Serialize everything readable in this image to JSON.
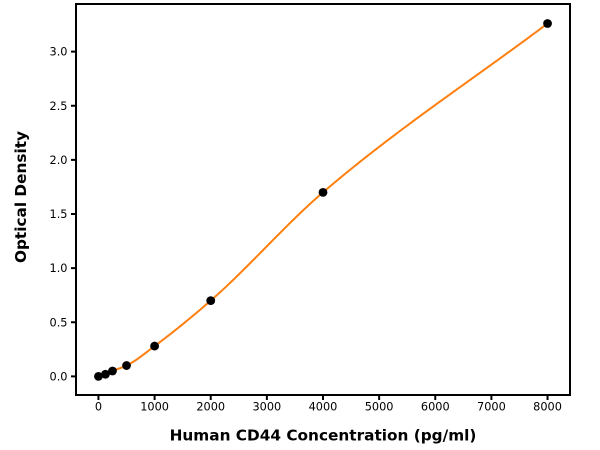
{
  "chart_data": {
    "type": "scatter",
    "title": "",
    "xlabel": "Human CD44 Concentration (pg/ml)",
    "ylabel": "Optical Density",
    "x": [
      0,
      125,
      250,
      500,
      1000,
      2000,
      4000,
      8000
    ],
    "y": [
      0.0,
      0.02,
      0.05,
      0.1,
      0.28,
      0.7,
      1.7,
      3.26
    ],
    "fit": {
      "style": "smooth",
      "color": "#ff7f0e",
      "line_width": 2
    },
    "marker": {
      "shape": "circle",
      "color": "#000000",
      "radius": 4.4
    },
    "xlim": [
      -400,
      8400
    ],
    "ylim": [
      -0.172,
      3.44
    ],
    "xticks": [
      0,
      1000,
      2000,
      3000,
      4000,
      5000,
      6000,
      7000,
      8000
    ],
    "xtick_labels": [
      "0",
      "1000",
      "2000",
      "3000",
      "4000",
      "5000",
      "6000",
      "7000",
      "8000"
    ],
    "yticks": [
      0,
      0.5,
      1,
      1.5,
      2,
      2.5,
      3
    ],
    "ytick_labels": [
      "0.0",
      "0.5",
      "1.0",
      "1.5",
      "2.0",
      "2.5",
      "3.0"
    ],
    "grid": false,
    "legend": false,
    "spine_color": "#000000",
    "background": "#ffffff"
  }
}
